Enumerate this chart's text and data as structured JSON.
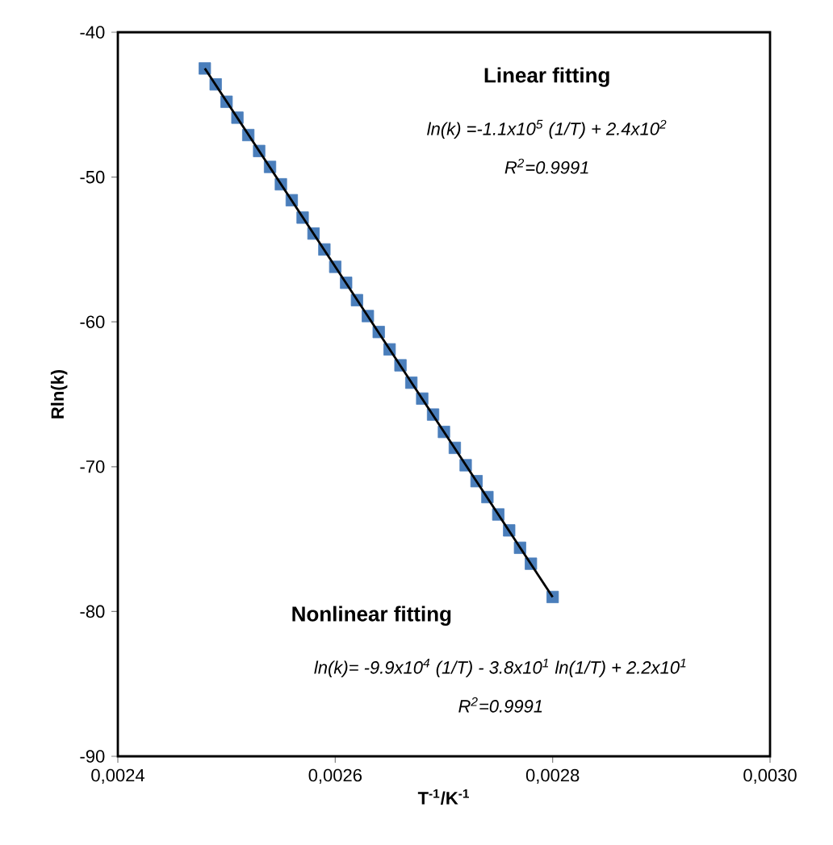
{
  "chart_data": {
    "type": "scatter",
    "xlabel": "T$^{-1}$/K$^{-1}$",
    "ylabel": "Rln(k)",
    "xlim": [
      0.0024,
      0.003
    ],
    "ylim": [
      -90,
      -40
    ],
    "xticks": [
      {
        "value": 0.0024,
        "label": "0,0024"
      },
      {
        "value": 0.0026,
        "label": "0,0026"
      },
      {
        "value": 0.0028,
        "label": "0,0028"
      },
      {
        "value": 0.003,
        "label": "0,0030"
      }
    ],
    "yticks": [
      -90,
      -80,
      -70,
      -60,
      -50,
      -40
    ],
    "marker": "square",
    "annotations": [
      "Linear fitting",
      "ln(k) =-1.1x10$^{5}$ (1/T) + 2.4x10$^{2}$",
      "R$^{2}$=0.9991",
      "Nonlinear fitting",
      "ln(k)= -9.9x10$^{4}$ (1/T) - 3.8x10$^{1}$ ln(1/T) + 2.2x10$^{1}$",
      "R$^{2}$=0.9991"
    ],
    "series": [
      {
        "color": "#4a7ebb",
        "x": [
          0.00248,
          0.00249,
          0.0025,
          0.00251,
          0.00252,
          0.00253,
          0.00254,
          0.00255,
          0.00256,
          0.00257,
          0.00258,
          0.00259,
          0.0026,
          0.00261,
          0.00262,
          0.00263,
          0.00264,
          0.00265,
          0.00266,
          0.00267,
          0.00268,
          0.00269,
          0.0027,
          0.00271,
          0.00272,
          0.00273,
          0.00274,
          0.00275,
          0.00276,
          0.00277,
          0.00278,
          0.0028
        ],
        "values": [
          -42.5,
          -43.6,
          -44.8,
          -45.9,
          -47.1,
          -48.2,
          -49.3,
          -50.5,
          -51.6,
          -52.8,
          -53.9,
          -55.0,
          -56.2,
          -57.3,
          -58.5,
          -59.6,
          -60.7,
          -61.9,
          -63.0,
          -64.2,
          -65.3,
          -66.4,
          -67.6,
          -68.7,
          -69.9,
          -71.0,
          -72.1,
          -73.3,
          -74.4,
          -75.6,
          -76.7,
          -79.0
        ]
      },
      {
        "type": "line",
        "color": "#000000",
        "marker": "none",
        "x": [
          0.00248,
          0.0028
        ],
        "values": [
          -42.5,
          -79.0
        ]
      }
    ]
  }
}
